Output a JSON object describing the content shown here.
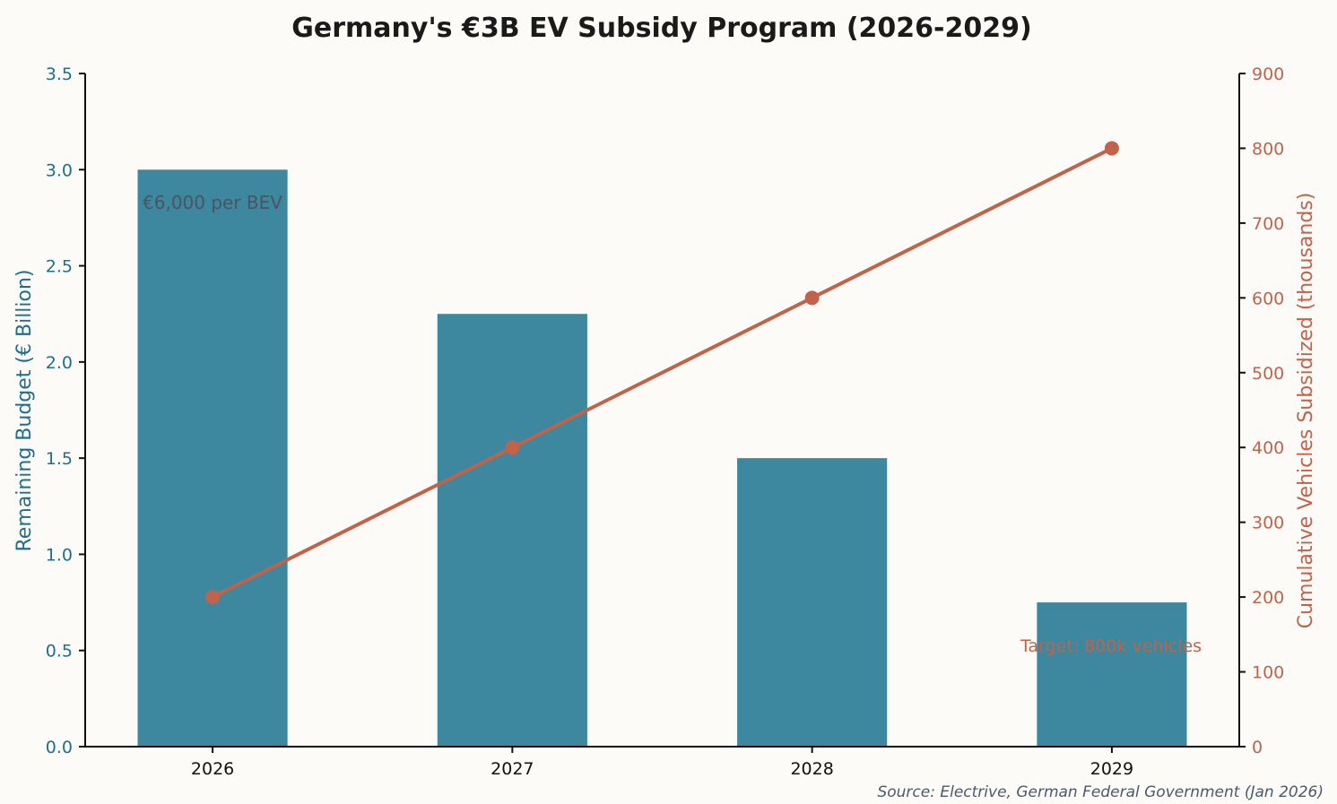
{
  "chart_data": {
    "type": "bar+line",
    "title": "Germany's €3B EV Subsidy Program (2026-2029)",
    "categories": [
      "2026",
      "2027",
      "2028",
      "2029"
    ],
    "series": [
      {
        "name": "Remaining Budget (€ Billion)",
        "type": "bar",
        "axis": "left",
        "values": [
          3.0,
          2.25,
          1.5,
          0.75
        ],
        "color": "#3d889e"
      },
      {
        "name": "Cumulative Vehicles Subsidized (thousands)",
        "type": "line",
        "axis": "right",
        "values": [
          200,
          400,
          600,
          800
        ],
        "color": "#c0634a"
      }
    ],
    "ylabel_left": "Remaining Budget (€ Billion)",
    "ylabel_right": "Cumulative Vehicles Subsidized (thousands)",
    "ylim_left": [
      0,
      3.5
    ],
    "ylim_right": [
      0,
      900
    ],
    "yticks_left": [
      "0.0",
      "0.5",
      "1.0",
      "1.5",
      "2.0",
      "2.5",
      "3.0",
      "3.5"
    ],
    "yticks_right": [
      "0",
      "100",
      "200",
      "300",
      "400",
      "500",
      "600",
      "700",
      "800",
      "900"
    ],
    "left_axis_color": "#1f6e8a",
    "right_axis_color": "#c0634a",
    "grid": false,
    "annotations": [
      {
        "text": "€6,000 per BEV",
        "color": "#4a5462"
      },
      {
        "text": "Target: 800k vehicles",
        "color": "#c0634a"
      }
    ],
    "source": "Source: Electrive, German Federal Government (Jan 2026)"
  }
}
